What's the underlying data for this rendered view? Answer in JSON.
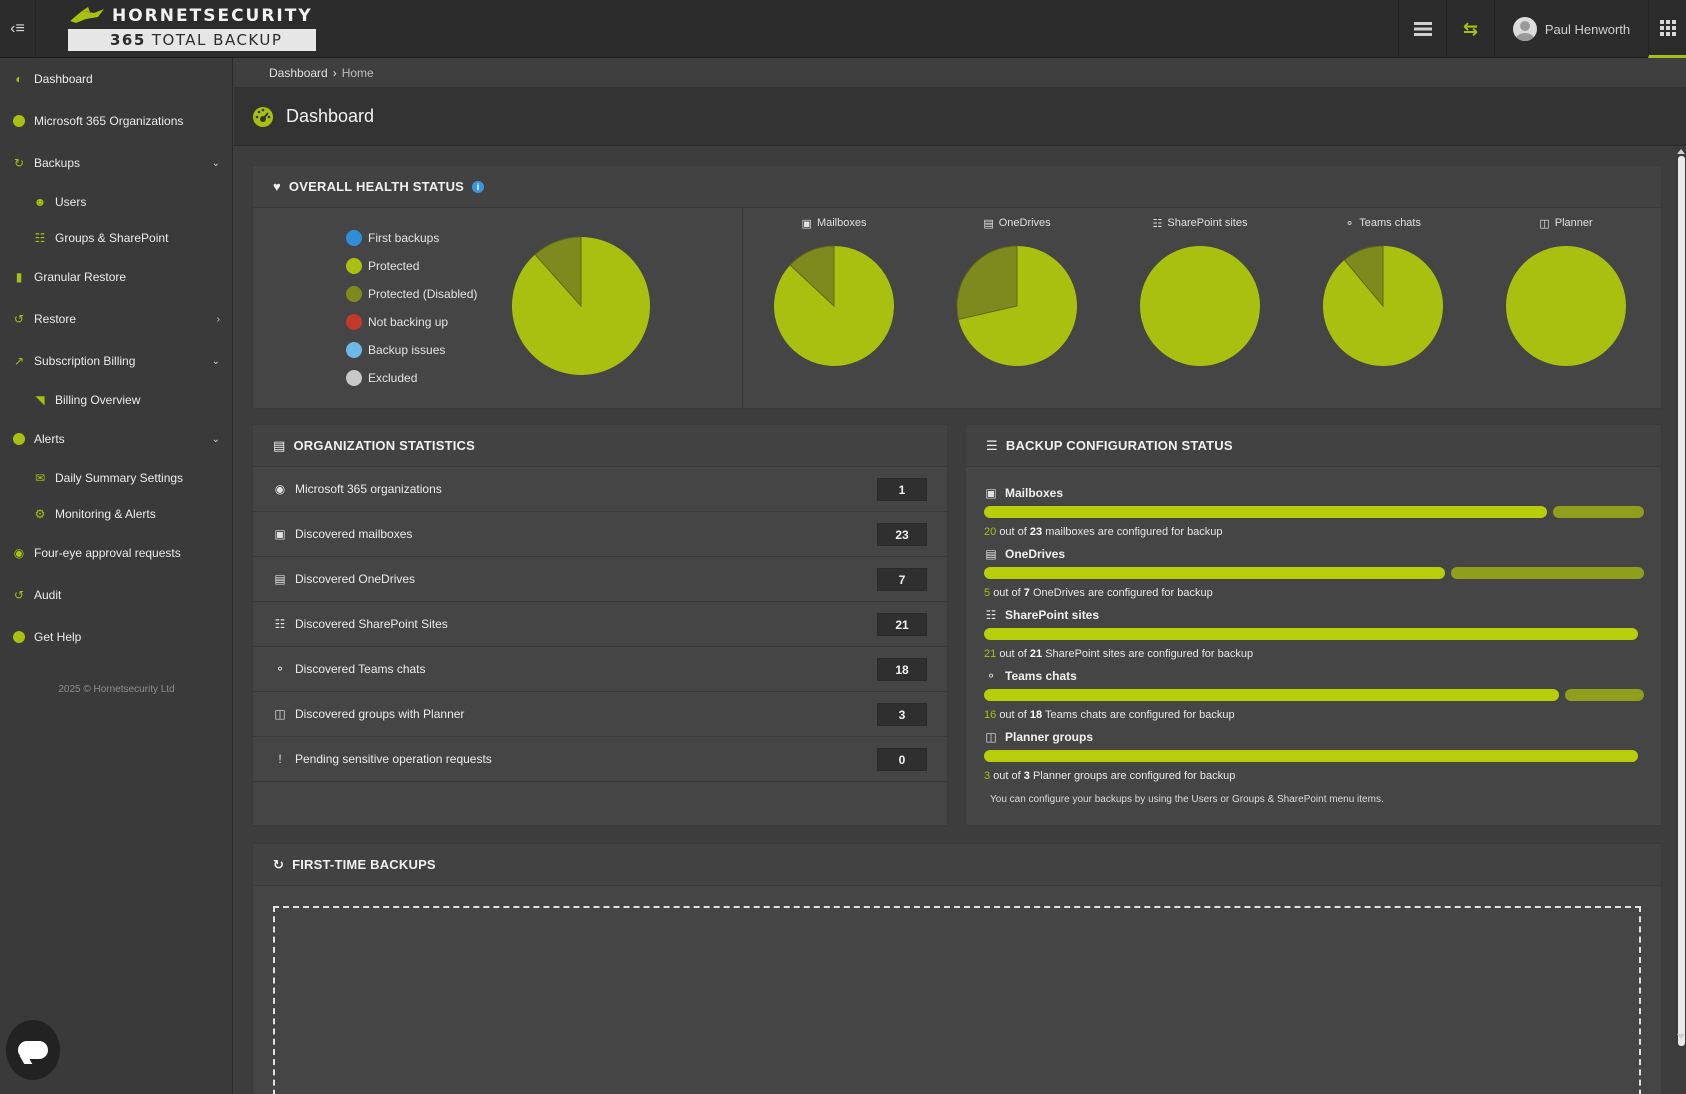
{
  "header": {
    "brand_top": "HORNETSECURITY",
    "brand_bottom_bold": "365",
    "brand_bottom": "TOTAL BACKUP",
    "user_name": "Paul Henworth"
  },
  "breadcrumb": {
    "root": "Dashboard",
    "current": "Home"
  },
  "page_title": "Dashboard",
  "sidebar": {
    "items": [
      {
        "label": "Dashboard"
      },
      {
        "label": "Microsoft 365 Organizations"
      },
      {
        "label": "Backups"
      },
      {
        "label": "Users"
      },
      {
        "label": "Groups & SharePoint"
      },
      {
        "label": "Granular Restore"
      },
      {
        "label": "Restore"
      },
      {
        "label": "Subscription Billing"
      },
      {
        "label": "Billing Overview"
      },
      {
        "label": "Alerts"
      },
      {
        "label": "Daily Summary Settings"
      },
      {
        "label": "Monitoring & Alerts"
      },
      {
        "label": "Four-eye approval requests"
      },
      {
        "label": "Audit"
      },
      {
        "label": "Get Help"
      }
    ],
    "copyright": "2025 © Hornetsecurity Ltd"
  },
  "health": {
    "title": "OVERALL HEALTH STATUS",
    "legend": [
      {
        "label": "First backups",
        "color": "#2f8fd6"
      },
      {
        "label": "Protected",
        "color": "#a8c110"
      },
      {
        "label": "Protected (Disabled)",
        "color": "#7e8a1e"
      },
      {
        "label": "Not backing up",
        "color": "#c0392b"
      },
      {
        "label": "Backup issues",
        "color": "#6cb8e6"
      },
      {
        "label": "Excluded",
        "color": "#c8c8c8"
      }
    ],
    "overall_pie": {
      "protected": 61,
      "protected_disabled": 8
    },
    "minis": [
      {
        "label": "Mailboxes",
        "protected": 20,
        "disabled": 3
      },
      {
        "label": "OneDrives",
        "protected": 5,
        "disabled": 2
      },
      {
        "label": "SharePoint sites",
        "protected": 21,
        "disabled": 0
      },
      {
        "label": "Teams chats",
        "protected": 16,
        "disabled": 2
      },
      {
        "label": "Planner",
        "protected": 3,
        "disabled": 0
      }
    ],
    "colors": {
      "protected": "#a8c110",
      "disabled": "#7e8a1e"
    }
  },
  "org_stats": {
    "title": "ORGANIZATION STATISTICS",
    "rows": [
      {
        "label": "Microsoft 365 organizations",
        "value": "1"
      },
      {
        "label": "Discovered mailboxes",
        "value": "23"
      },
      {
        "label": "Discovered OneDrives",
        "value": "7"
      },
      {
        "label": "Discovered SharePoint Sites",
        "value": "21"
      },
      {
        "label": "Discovered Teams chats",
        "value": "18"
      },
      {
        "label": "Discovered groups with Planner",
        "value": "3"
      },
      {
        "label": "Pending sensitive operation requests",
        "value": "0"
      }
    ]
  },
  "backup_config": {
    "title": "BACKUP CONFIGURATION STATUS",
    "items": [
      {
        "label": "Mailboxes",
        "configured": "20",
        "total": "23",
        "noun": "mailboxes are configured for backup",
        "fraction": 0.87
      },
      {
        "label": "OneDrives",
        "configured": "5",
        "total": "7",
        "noun": "OneDrives are configured for backup",
        "fraction": 0.714
      },
      {
        "label": "SharePoint sites",
        "configured": "21",
        "total": "21",
        "noun": "SharePoint sites are configured for backup",
        "fraction": 1
      },
      {
        "label": "Teams chats",
        "configured": "16",
        "total": "18",
        "noun": "Teams chats are configured for backup",
        "fraction": 0.889
      },
      {
        "label": "Planner groups",
        "configured": "3",
        "total": "3",
        "noun": "Planner groups are configured for backup",
        "fraction": 1
      }
    ],
    "out_of": "out of",
    "note": "You can configure your backups by using the Users or Groups & SharePoint menu items."
  },
  "first_backups": {
    "title": "FIRST-TIME BACKUPS"
  }
}
